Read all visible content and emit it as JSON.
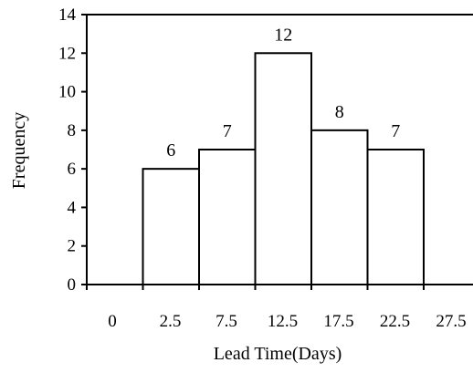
{
  "chart_data": {
    "type": "bar",
    "title": "",
    "xlabel": "Lead Time(Days)",
    "ylabel": "Frequency",
    "categories": [
      "0",
      "2.5",
      "7.5",
      "12.5",
      "17.5",
      "22.5",
      "27.5"
    ],
    "bars": [
      {
        "x_start": "2.5",
        "x_end": "7.5",
        "value": 6
      },
      {
        "x_start": "7.5",
        "x_end": "12.5",
        "value": 7
      },
      {
        "x_start": "12.5",
        "x_end": "17.5",
        "value": 12
      },
      {
        "x_start": "17.5",
        "x_end": "22.5",
        "value": 8
      },
      {
        "x_start": "22.5",
        "x_end": "27.5",
        "value": 7
      }
    ],
    "data_labels": [
      "6",
      "7",
      "12",
      "8",
      "7"
    ],
    "yticks": [
      0,
      2,
      4,
      6,
      8,
      10,
      12,
      14
    ],
    "ylim": [
      0,
      14
    ],
    "grid": false,
    "legend": "none",
    "colors": {
      "bar_fill": "#ffffff",
      "bar_stroke": "#000000",
      "axis": "#000000"
    }
  }
}
